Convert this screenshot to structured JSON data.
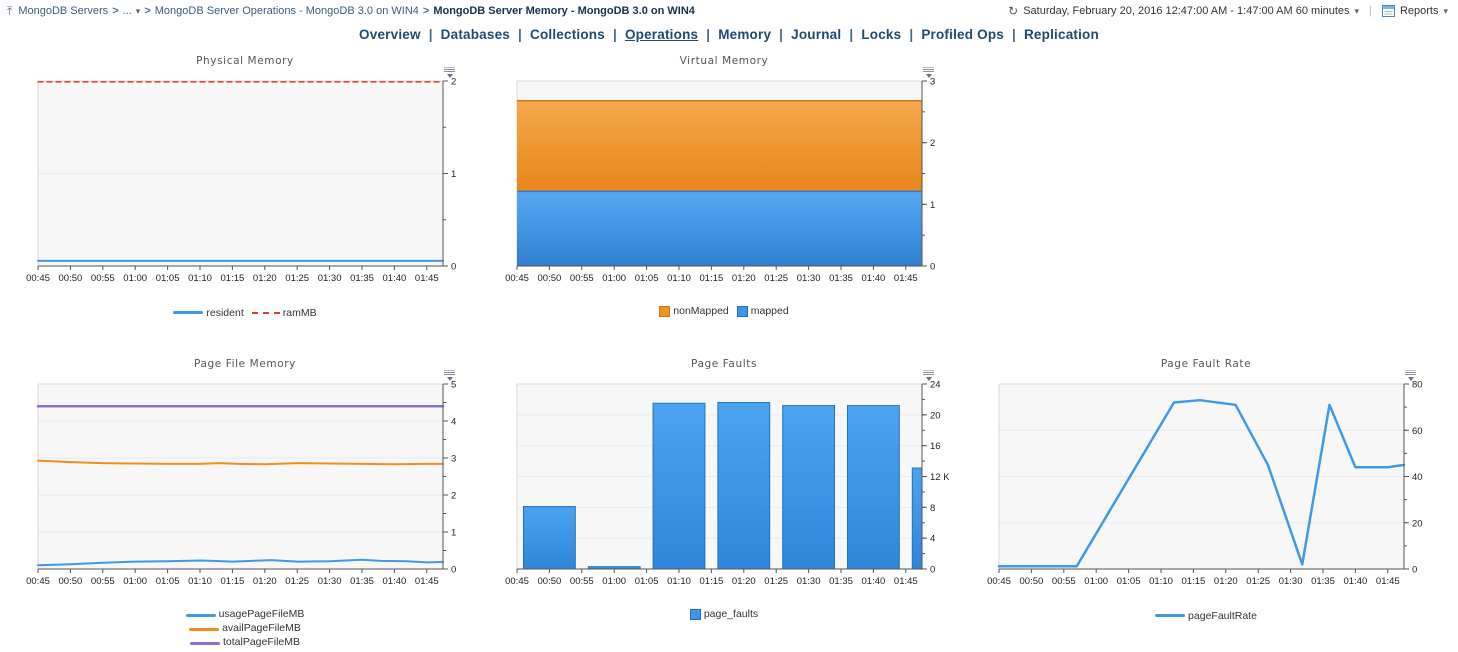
{
  "breadcrumb": {
    "separator": ">",
    "up_icon": "breadcrumb-up-icon",
    "items": [
      {
        "label": "MongoDB Servers",
        "current": false,
        "dropdown": false
      },
      {
        "label": "...",
        "current": false,
        "dropdown": true
      },
      {
        "label": "MongoDB Server Operations - MongoDB 3.0 on WIN4",
        "current": false,
        "dropdown": false
      },
      {
        "label": "MongoDB Server Memory - MongoDB 3.0 on WIN4",
        "current": true,
        "dropdown": false
      }
    ]
  },
  "topbar": {
    "time_range_label": "Saturday, February 20, 2016 12:47:00 AM - 1:47:00 AM 60 minutes",
    "reports_label": "Reports"
  },
  "nav": {
    "separator": "|",
    "tabs": [
      {
        "label": "Overview",
        "active": false
      },
      {
        "label": "Databases",
        "active": false
      },
      {
        "label": "Collections",
        "active": false
      },
      {
        "label": "Operations",
        "active": true
      },
      {
        "label": "Memory",
        "active": false
      },
      {
        "label": "Journal",
        "active": false
      },
      {
        "label": "Locks",
        "active": false
      },
      {
        "label": "Profiled Ops",
        "active": false
      },
      {
        "label": "Replication",
        "active": false
      }
    ]
  },
  "colors": {
    "series_blue": "#3e9ae9",
    "series_red": "#e23b30",
    "series_orange": "#ef8d1e",
    "series_purple": "#8e6ec8",
    "area_orange_top": "#f4a94d",
    "area_orange_bottom": "#e8861a",
    "area_orange_edge": "#d07912",
    "area_blue_top": "#58a9f3",
    "area_blue_bottom": "#2f80d0",
    "area_blue_edge": "#2e7fd0",
    "bar_fill_top": "#4ba4f0",
    "bar_fill_bottom": "#2e86da",
    "bar_edge": "#2273c0",
    "nav_text": "#1f4a73",
    "axis": "#555555",
    "plot_bg": "#f7f7f8",
    "gridline": "#eaeaef"
  },
  "chart_data": [
    {
      "title": "Physical Memory",
      "type": "line",
      "unit": "GB",
      "ylim": [
        0,
        2
      ],
      "y_major_ticks": [
        0,
        1,
        2
      ],
      "y_minor_step": 0.5,
      "x_ticks": [
        "00:45",
        "00:50",
        "00:55",
        "01:00",
        "01:05",
        "01:10",
        "01:15",
        "01:20",
        "01:25",
        "01:30",
        "01:35",
        "01:40",
        "01:45"
      ],
      "x_tick_minutes": [
        0,
        5,
        10,
        15,
        20,
        25,
        30,
        35,
        40,
        45,
        50,
        55,
        60
      ],
      "x_domain_minutes": [
        0,
        62.5
      ],
      "legend_layout": "horizontal",
      "series": [
        {
          "name": "resident",
          "style": "line",
          "color": "#3e9ae9",
          "width": 2,
          "points": [
            [
              0,
              0.055
            ],
            [
              62.5,
              0.055
            ]
          ],
          "legend": {
            "swatch": "line",
            "color": "#3e9ae9"
          }
        },
        {
          "name": "ramMB",
          "style": "dashed",
          "color": "#e23b30",
          "width": 1.5,
          "points": [
            [
              0,
              1.99
            ],
            [
              62.5,
              1.99
            ]
          ],
          "legend": {
            "swatch": "dashed",
            "color": "#e23b30"
          }
        }
      ]
    },
    {
      "title": "Virtual Memory",
      "type": "area",
      "unit": "GB",
      "ylim": [
        0,
        3
      ],
      "y_major_ticks": [
        0,
        1,
        2,
        3
      ],
      "y_minor_step": 0.5,
      "x_ticks": [
        "00:45",
        "00:50",
        "00:55",
        "01:00",
        "01:05",
        "01:10",
        "01:15",
        "01:20",
        "01:25",
        "01:30",
        "01:35",
        "01:40",
        "01:45"
      ],
      "x_tick_minutes": [
        0,
        5,
        10,
        15,
        20,
        25,
        30,
        35,
        40,
        45,
        50,
        55,
        60
      ],
      "x_domain_minutes": [
        0,
        62.5
      ],
      "legend_layout": "horizontal",
      "series": [
        {
          "name": "nonMapped",
          "style": "area",
          "fill_top": "#f4a94d",
          "fill_bottom": "#e8861a",
          "edge": "#d07912",
          "upper": [
            [
              0,
              2.68
            ],
            [
              62.5,
              2.68
            ]
          ],
          "lower": [
            [
              0,
              1.21
            ],
            [
              62.5,
              1.21
            ]
          ],
          "legend": {
            "swatch": "box",
            "color": "#ef9227",
            "edge": "#c87a14"
          }
        },
        {
          "name": "mapped",
          "style": "area",
          "fill_top": "#58a9f3",
          "fill_bottom": "#2f80d0",
          "edge": "#2e7fd0",
          "upper": [
            [
              0,
              1.21
            ],
            [
              62.5,
              1.21
            ]
          ],
          "lower": [
            [
              0,
              0
            ],
            [
              62.5,
              0
            ]
          ],
          "legend": {
            "swatch": "box",
            "color": "#3d97e8",
            "edge": "#2470bb"
          }
        }
      ]
    },
    {
      "title": "Page File Memory",
      "type": "line",
      "unit": "GB",
      "ylim": [
        0,
        5
      ],
      "y_major_ticks": [
        0,
        1,
        2,
        3,
        4,
        5
      ],
      "y_minor_step": 0.5,
      "x_ticks": [
        "00:45",
        "00:50",
        "00:55",
        "01:00",
        "01:05",
        "01:10",
        "01:15",
        "01:20",
        "01:25",
        "01:30",
        "01:35",
        "01:40",
        "01:45"
      ],
      "x_tick_minutes": [
        0,
        5,
        10,
        15,
        20,
        25,
        30,
        35,
        40,
        45,
        50,
        55,
        60
      ],
      "x_domain_minutes": [
        0,
        62.5
      ],
      "legend_layout": "vertical",
      "series": [
        {
          "name": "usagePageFileMB",
          "style": "line",
          "color": "#3e9ae9",
          "width": 2,
          "points": [
            [
              0,
              0.1
            ],
            [
              5,
              0.13
            ],
            [
              10,
              0.17
            ],
            [
              15,
              0.2
            ],
            [
              20,
              0.21
            ],
            [
              25,
              0.23
            ],
            [
              27,
              0.22
            ],
            [
              30,
              0.2
            ],
            [
              33,
              0.22
            ],
            [
              36,
              0.24
            ],
            [
              40,
              0.2
            ],
            [
              45,
              0.21
            ],
            [
              50,
              0.25
            ],
            [
              53,
              0.22
            ],
            [
              57,
              0.21
            ],
            [
              60,
              0.18
            ],
            [
              62.5,
              0.19
            ]
          ],
          "legend": {
            "swatch": "line",
            "color": "#3e9ae9"
          }
        },
        {
          "name": "availPageFileMB",
          "style": "line",
          "color": "#ef8d1e",
          "width": 2,
          "points": [
            [
              0,
              2.93
            ],
            [
              5,
              2.89
            ],
            [
              10,
              2.86
            ],
            [
              15,
              2.85
            ],
            [
              20,
              2.84
            ],
            [
              25,
              2.84
            ],
            [
              28,
              2.86
            ],
            [
              31,
              2.84
            ],
            [
              35,
              2.83
            ],
            [
              40,
              2.86
            ],
            [
              45,
              2.85
            ],
            [
              50,
              2.84
            ],
            [
              55,
              2.83
            ],
            [
              60,
              2.84
            ],
            [
              62.5,
              2.84
            ]
          ],
          "legend": {
            "swatch": "line",
            "color": "#ef8d1e"
          }
        },
        {
          "name": "totalPageFileMB",
          "style": "line",
          "color": "#8e6ec8",
          "width": 2.5,
          "points": [
            [
              0,
              4.4
            ],
            [
              62.5,
              4.4
            ]
          ],
          "legend": {
            "swatch": "line",
            "color": "#8e6ec8"
          }
        }
      ]
    },
    {
      "title": "Page Faults",
      "type": "bar",
      "unit": "",
      "ylim": [
        0,
        24
      ],
      "y_major_ticks": [
        0,
        4,
        8,
        12,
        16,
        20,
        24
      ],
      "y_major_labels": [
        "0",
        "4",
        "8",
        "12 K",
        "16",
        "20",
        "24"
      ],
      "y_minor_step": 2,
      "x_ticks": [
        "00:45",
        "00:50",
        "00:55",
        "01:00",
        "01:05",
        "01:10",
        "01:15",
        "01:20",
        "01:25",
        "01:30",
        "01:35",
        "01:40",
        "01:45"
      ],
      "x_tick_minutes": [
        0,
        5,
        10,
        15,
        20,
        25,
        30,
        35,
        40,
        45,
        50,
        55,
        60
      ],
      "x_domain_minutes": [
        0,
        62.5
      ],
      "legend_layout": "horizontal",
      "series": [
        {
          "name": "page_faults",
          "style": "bars",
          "fill_top": "#4ba4f0",
          "fill_bottom": "#2e86da",
          "edge": "#2273c0",
          "bars": [
            {
              "center": 5,
              "width": 8,
              "value": 8.1
            },
            {
              "center": 15,
              "width": 8,
              "value": 0.3
            },
            {
              "center": 25,
              "width": 8,
              "value": 21.5
            },
            {
              "center": 35,
              "width": 8,
              "value": 21.6
            },
            {
              "center": 45,
              "width": 8,
              "value": 21.2
            },
            {
              "center": 55,
              "width": 8,
              "value": 21.2
            },
            {
              "center": 65,
              "width": 8,
              "value": 13.1
            }
          ],
          "legend": {
            "swatch": "box",
            "color": "#3d97e8",
            "edge": "#2470bb"
          }
        }
      ]
    },
    {
      "title": "Page Fault Rate",
      "type": "line",
      "unit": "c/s",
      "ylim": [
        0,
        80
      ],
      "y_major_ticks": [
        0,
        20,
        40,
        60,
        80
      ],
      "y_minor_step": 10,
      "x_ticks": [
        "00:45",
        "00:50",
        "00:55",
        "01:00",
        "01:05",
        "01:10",
        "01:15",
        "01:20",
        "01:25",
        "01:30",
        "01:35",
        "01:40",
        "01:45"
      ],
      "x_tick_minutes": [
        0,
        5,
        10,
        15,
        20,
        25,
        30,
        35,
        40,
        45,
        50,
        55,
        60
      ],
      "x_domain_minutes": [
        0,
        62.5
      ],
      "legend_layout": "horizontal",
      "series": [
        {
          "name": "pageFaultRate",
          "style": "line",
          "color": "#3e9ae9",
          "width": 2.5,
          "points": [
            [
              0,
              1.2
            ],
            [
              12,
              1.2
            ],
            [
              27,
              72
            ],
            [
              31,
              73
            ],
            [
              36.5,
              71
            ],
            [
              41.5,
              45
            ],
            [
              46.8,
              2
            ],
            [
              51,
              71
            ],
            [
              55,
              44
            ],
            [
              60,
              44
            ],
            [
              62.5,
              45
            ]
          ],
          "legend": {
            "swatch": "line",
            "color": "#3e9ae9"
          }
        }
      ]
    }
  ]
}
